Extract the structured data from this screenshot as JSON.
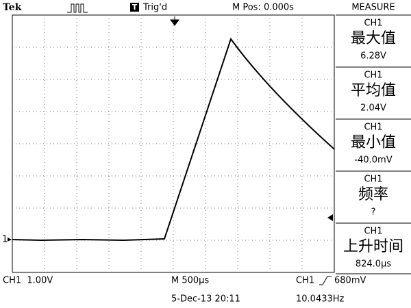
{
  "header": {
    "brand": "Tek",
    "trigger_icon": "T",
    "trigger_status": "Trig'd",
    "position": "M Pos: 0.000s",
    "menu_title": "MEASURE"
  },
  "channel_marker": "1",
  "measure": {
    "items": [
      {
        "channel": "CH1",
        "label": "最大值",
        "value": "6.28V"
      },
      {
        "channel": "CH1",
        "label": "平均值",
        "value": "2.04V"
      },
      {
        "channel": "CH1",
        "label": "最小值",
        "value": "-40.0mV"
      },
      {
        "channel": "CH1",
        "label": "频率",
        "value": "?"
      },
      {
        "channel": "CH1",
        "label": "上升时间",
        "value": "824.0µs"
      }
    ]
  },
  "footer": {
    "channel_scale": "CH1  1.00V",
    "time_scale": "M 500µs",
    "trigger_channel": "CH1",
    "trigger_level": "680mV",
    "date_time": "5-Dec-13 20:11",
    "frequency": "10.0433Hz"
  }
}
